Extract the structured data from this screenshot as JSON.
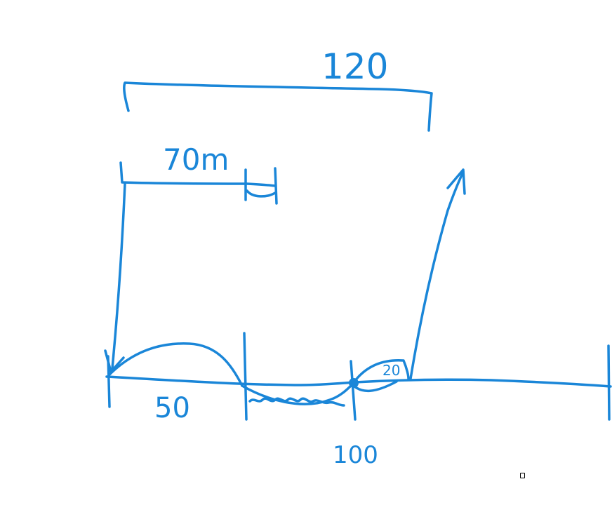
{
  "colors": {
    "ink": "#1a86d8",
    "background": "#ffffff"
  },
  "labels": {
    "total_distance": "120",
    "upper_segment": "70m",
    "first_segment": "50",
    "small_arc": "20",
    "origin_mark": "100"
  }
}
